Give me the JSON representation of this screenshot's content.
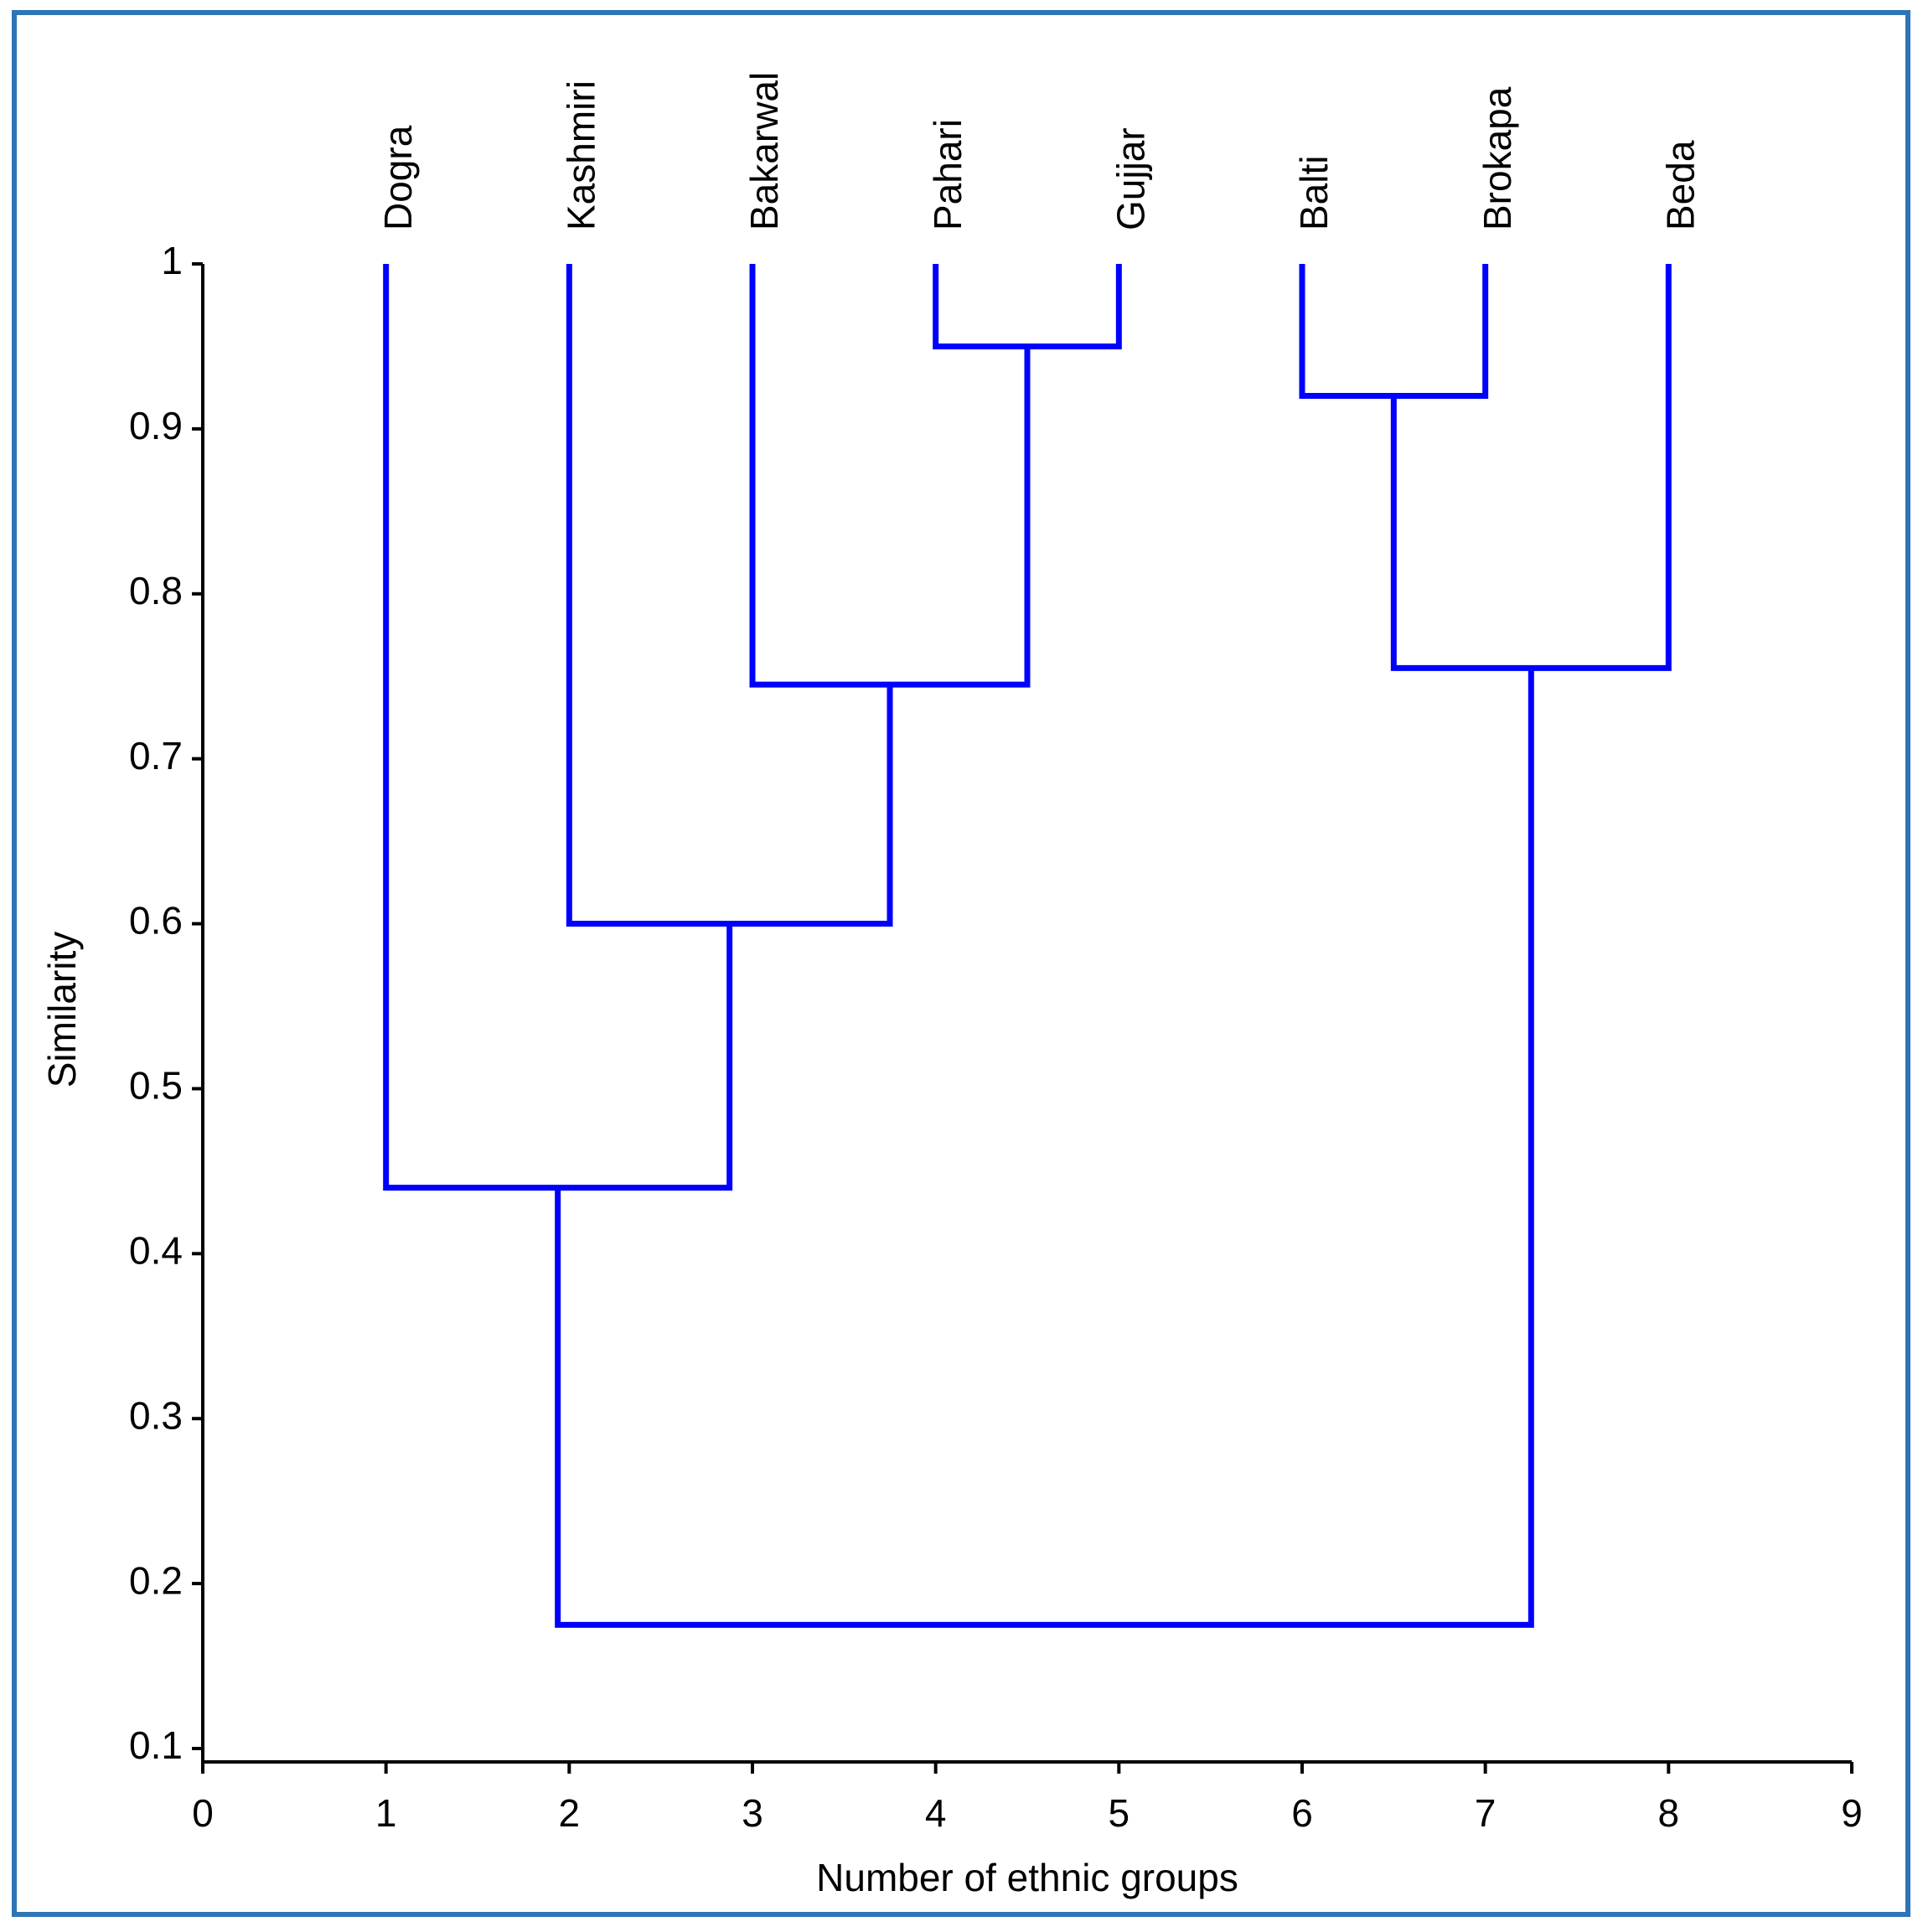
{
  "chart_data": {
    "type": "dendrogram",
    "x_label": "Number of ethnic groups",
    "y_label": "Similarity",
    "labels": [
      "Dogra",
      "Kashmiri",
      "Bakarwal",
      "Pahari",
      "Gujjar",
      "Balti",
      "Brokapa",
      "Beda"
    ],
    "x": [
      1,
      2,
      3,
      4,
      5,
      6,
      7,
      8
    ],
    "merges": [
      {
        "children": [
          3,
          4
        ],
        "height": 0.95
      },
      {
        "children": [
          5,
          6
        ],
        "height": 0.92
      },
      {
        "children": [
          2,
          8
        ],
        "height": 0.745
      },
      {
        "children": [
          9,
          7
        ],
        "height": 0.755
      },
      {
        "children": [
          1,
          10
        ],
        "height": 0.6
      },
      {
        "children": [
          0,
          12
        ],
        "height": 0.44
      },
      {
        "children": [
          13,
          11
        ],
        "height": 0.175
      }
    ],
    "color": "#0000ff",
    "xlim": [
      0,
      9
    ],
    "xticks": [
      0,
      1,
      2,
      3,
      4,
      5,
      6,
      7,
      8,
      9
    ],
    "ylim": [
      0.1,
      1
    ],
    "yticks": [
      0.1,
      0.2,
      0.3,
      0.4,
      0.5,
      0.6,
      0.7,
      0.8,
      0.9,
      1
    ]
  }
}
